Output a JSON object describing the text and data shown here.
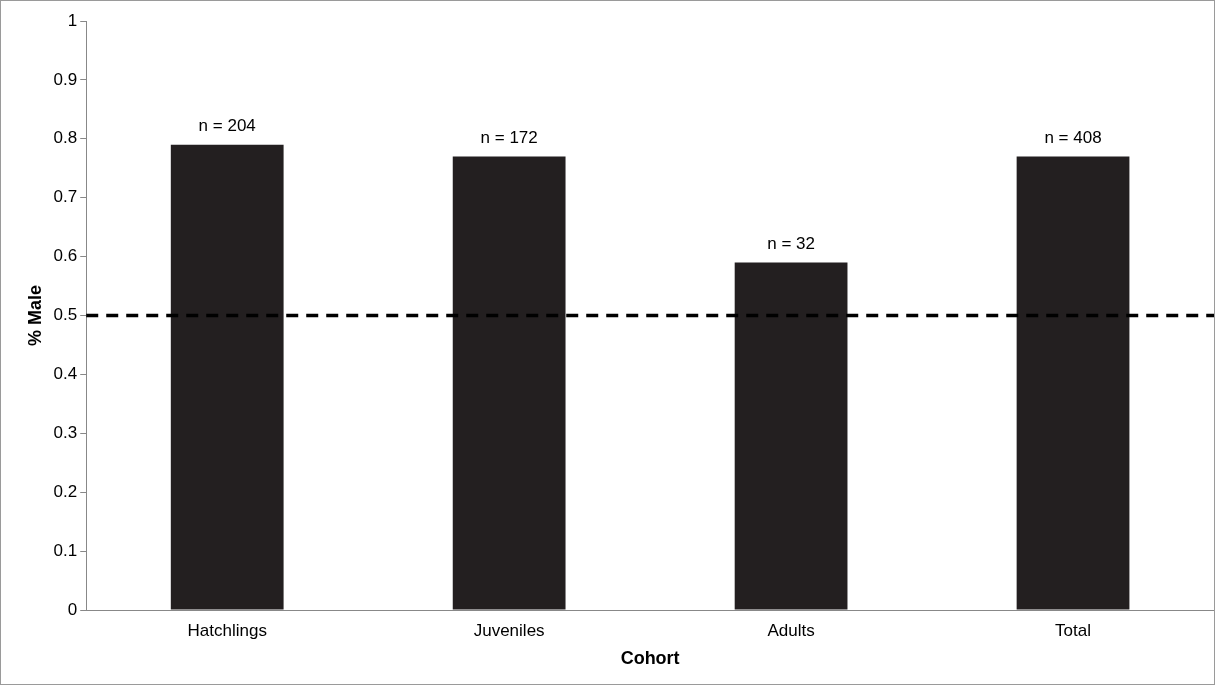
{
  "chart_data": {
    "type": "bar",
    "xlabel": "Cohort",
    "ylabel": "% Male",
    "categories": [
      "Hatchlings",
      "Juveniles",
      "Adults",
      "Total"
    ],
    "values": [
      0.79,
      0.77,
      0.59,
      0.77
    ],
    "color": "#231f20",
    "ylim": [
      0,
      1
    ],
    "yticks": [
      0,
      0.1,
      0.2,
      0.3,
      0.4,
      0.5,
      0.6,
      0.7,
      0.8,
      0.9,
      1
    ],
    "grid": false,
    "legend": false,
    "ref_lines": [
      {
        "axis": "y",
        "value": 0.5,
        "color": "#000000",
        "line_style": "dashed"
      }
    ],
    "annotations": [
      {
        "text": "n = 204",
        "x": "Hatchlings",
        "y": 0.79
      },
      {
        "text": "n = 172",
        "x": "Juveniles",
        "y": 0.77
      },
      {
        "text": "n = 32",
        "x": "Adults",
        "y": 0.59
      },
      {
        "text": "n = 408",
        "x": "Total",
        "y": 0.77
      }
    ]
  }
}
